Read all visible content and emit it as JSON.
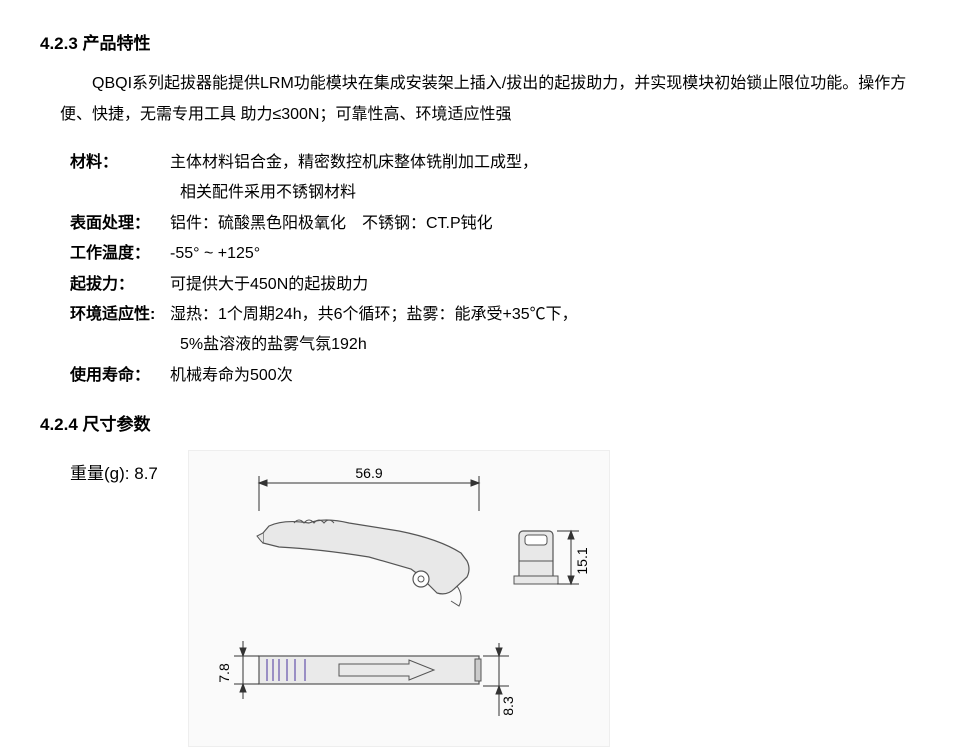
{
  "section1": {
    "number": "4.2.3",
    "title": "产品特性",
    "intro": "QBQI系列起拔器能提供LRM功能模块在集成安装架上插入/拔出的起拔助力，并实现模块初始锁止限位功能。操作方便、快捷，无需专用工具 助力≤300N；可靠性高、环境适应性强"
  },
  "specs": [
    {
      "label": "材料：",
      "value": "主体材料铝合金，精密数控机床整体铣削加工成型，",
      "value2": "相关配件采用不锈钢材料"
    },
    {
      "label": "表面处理：",
      "value": "铝件：硫酸黑色阳极氧化　不锈钢：CT.P钝化"
    },
    {
      "label": "工作温度：",
      "value": "-55° ~ +125°"
    },
    {
      "label": "起拔力：",
      "value": "可提供大于450N的起拔助力"
    },
    {
      "label": "环境适应性:",
      "value": "湿热：1个周期24h，共6个循环；盐雾：能承受+35℃下，",
      "value2": "5%盐溶液的盐雾气氛192h"
    },
    {
      "label": "使用寿命：",
      "value": "机械寿命为500次"
    }
  ],
  "section2": {
    "number": "4.2.4",
    "title": "尺寸参数",
    "weight_label": "重量(g):",
    "weight_value": "8.7"
  },
  "drawing": {
    "dim_top": "56.9",
    "dim_right": "15.1",
    "dim_left": "7.8",
    "dim_bottom_right": "8.3",
    "colors": {
      "bg": "#fafafa",
      "line": "#333333",
      "part_fill": "#d8d8d8",
      "part_stroke": "#555555",
      "hatch": "#9a8fc4"
    }
  }
}
